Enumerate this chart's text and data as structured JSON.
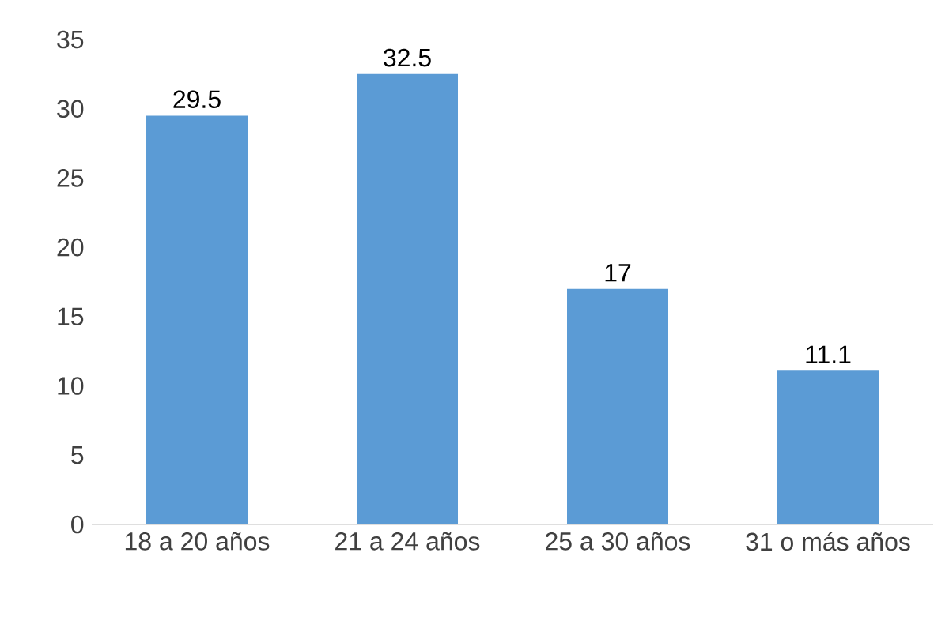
{
  "chart_data": {
    "type": "bar",
    "categories": [
      "18 a 20 años",
      "21 a 24 años",
      "25 a 30 años",
      "31 o más años"
    ],
    "values": [
      29.5,
      32.5,
      17,
      11.1
    ],
    "color": "#5b9bd5",
    "ylim": [
      0,
      35
    ],
    "yticks": [
      0,
      5,
      10,
      15,
      20,
      25,
      30,
      35
    ],
    "grid": false,
    "data_labels": true
  }
}
